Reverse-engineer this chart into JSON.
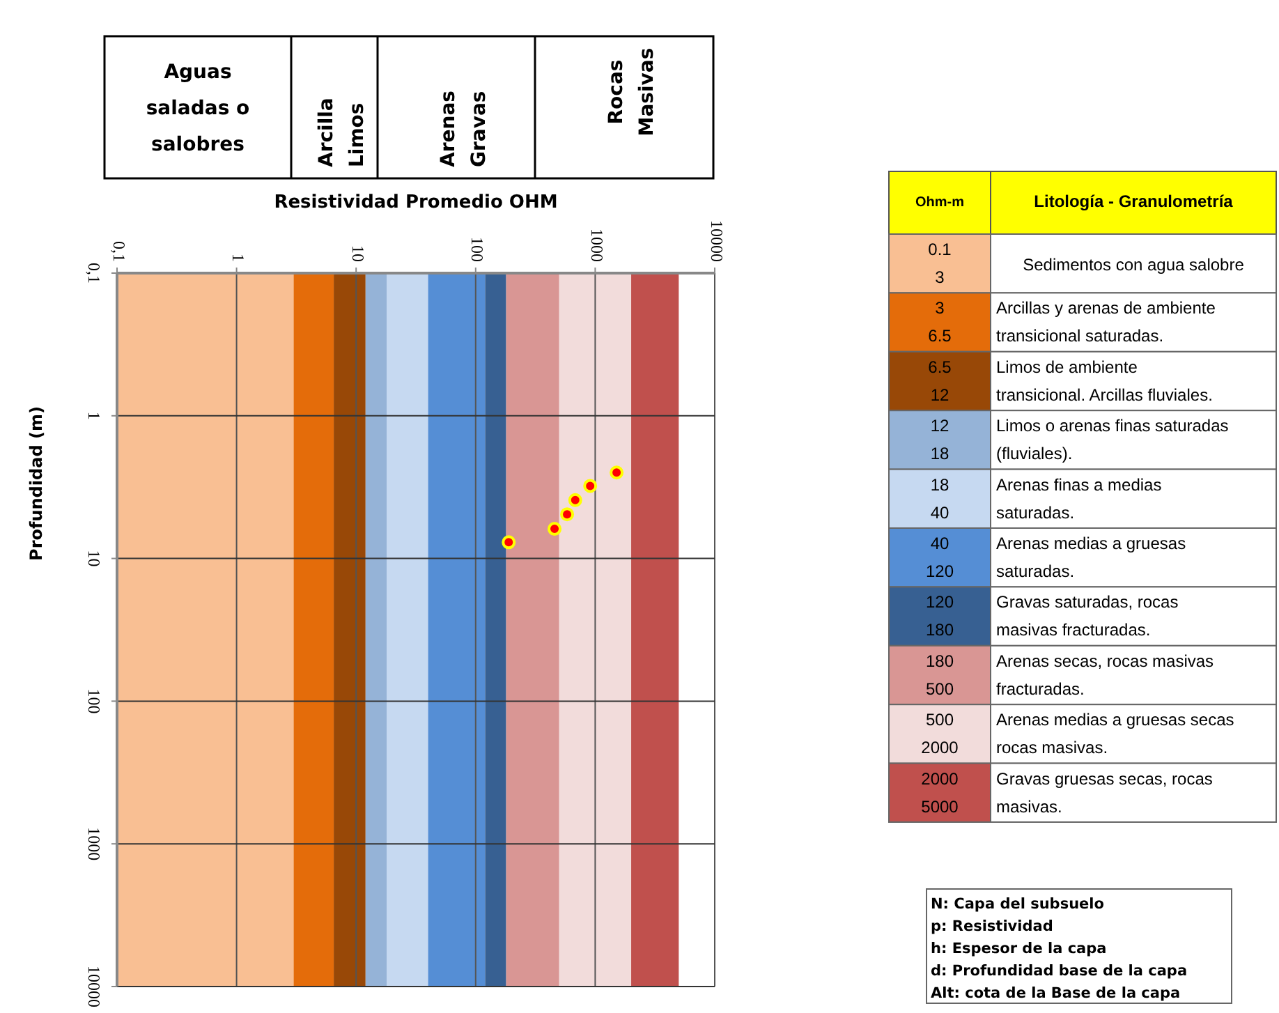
{
  "chart_data": [
    {
      "type": "scatter",
      "xlabel": "Resistividad Promedio OHM",
      "ylabel": "Profundidad (m)",
      "log": "xy",
      "xlim": [
        0.1,
        10000
      ],
      "ylim": [
        10000,
        0.1
      ],
      "xticks": [
        {
          "value": 0.1,
          "label": "0,1"
        },
        1,
        10,
        100,
        1000,
        10000
      ],
      "yticks": [
        {
          "value": 0.1,
          "label": "0,1"
        },
        1,
        10,
        100,
        1000,
        10000
      ],
      "grid": true,
      "marker": "circle",
      "series": [
        {
          "color": "#ff0000",
          "x": [
            189,
            457,
            582,
            681,
            908,
            1510
          ],
          "values": [
            7.7,
            6.2,
            4.9,
            3.9,
            3.1,
            2.5
          ]
        }
      ],
      "bands": [
        {
          "axis": "x",
          "from": 0.1,
          "to": 3,
          "color": "#f9bf93"
        },
        {
          "axis": "x",
          "from": 3,
          "to": 6.5,
          "color": "#e46c0a"
        },
        {
          "axis": "x",
          "from": 6.5,
          "to": 12,
          "color": "#984807"
        },
        {
          "axis": "x",
          "from": 12,
          "to": 18,
          "color": "#95b3d7"
        },
        {
          "axis": "x",
          "from": 18,
          "to": 40,
          "color": "#c6d9f1"
        },
        {
          "axis": "x",
          "from": 40,
          "to": 120,
          "color": "#558ed5"
        },
        {
          "axis": "x",
          "from": 120,
          "to": 180,
          "color": "#376092"
        },
        {
          "axis": "x",
          "from": 180,
          "to": 500,
          "color": "#d99694"
        },
        {
          "axis": "x",
          "from": 500,
          "to": 2000,
          "color": "#f2dcdb"
        },
        {
          "axis": "x",
          "from": 2000,
          "to": 5000,
          "color": "#c0504d"
        }
      ],
      "annotations": [
        "Aguas\nsaladas o\nsalobres",
        "Arcilla\nLimos",
        "Arenas\nGravas",
        "Rocas\nMasivas",
        "N: Capa del subsuelo",
        "p: Resistividad",
        "h: Espesor de la capa",
        "d: Profundidad base de la capa",
        "Alt: cota de la Base de la capa"
      ]
    },
    {
      "type": "other",
      "annotations": [
        "Ohm-m",
        "Litología - Granulometría"
      ],
      "categories": [
        "Sedimentos con agua salobre",
        "Arcillas y arenas de ambiente\ntransicional saturadas.",
        "Limos de ambiente\ntransicional. Arcillas fluviales.",
        "Limos o arenas finas saturadas\n(fluviales).",
        "Arenas finas a medias\nsaturadas.",
        "Arenas medias a gruesas\nsaturadas.",
        "Gravas saturadas, rocas\nmasivas fracturadas.",
        "Arenas secas, rocas masivas\nfracturadas.",
        "Arenas medias a gruesas secas\nrocas masivas.",
        "Gravas gruesas secas, rocas\nmasivas."
      ],
      "value_labels": [
        "0.1\n3",
        "3\n6.5",
        "6.5\n12",
        "12\n18",
        "18\n40",
        "40\n120",
        "120\n180",
        "180\n500",
        "500\n2000",
        "2000\n5000"
      ]
    }
  ]
}
